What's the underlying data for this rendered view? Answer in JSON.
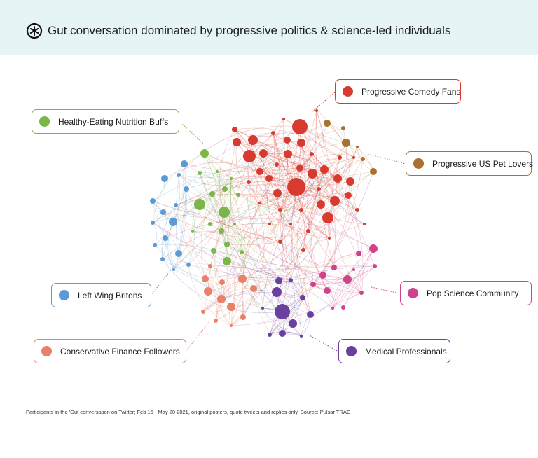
{
  "header": {
    "title": "Gut conversation dominated by progressive politics & science-led individuals",
    "logo_icon": "pulsar-logo-icon"
  },
  "communities": [
    {
      "id": "comedy",
      "label": "Progressive Comedy Fans",
      "color": "#d93a2f"
    },
    {
      "id": "nutrition",
      "label": "Healthy-Eating Nutrition Buffs",
      "color": "#7ab648"
    },
    {
      "id": "pets",
      "label": "Progressive US Pet Lovers",
      "color": "#a87033"
    },
    {
      "id": "popsci",
      "label": "Pop Science Community",
      "color": "#d0428c"
    },
    {
      "id": "leftwing",
      "label": "Left Wing Britons",
      "color": "#5b9bd5"
    },
    {
      "id": "finance",
      "label": "Conservative Finance Followers",
      "color": "#e8806a"
    },
    {
      "id": "medical",
      "label": "Medical Professionals",
      "color": "#6b3fa0"
    }
  ],
  "footnote": "Participants in the 'Gut conversation on Twitter; Feb 15 - May 20 2021, original posters, quote tweets and replies only. Source: Pulsar TRAC"
}
